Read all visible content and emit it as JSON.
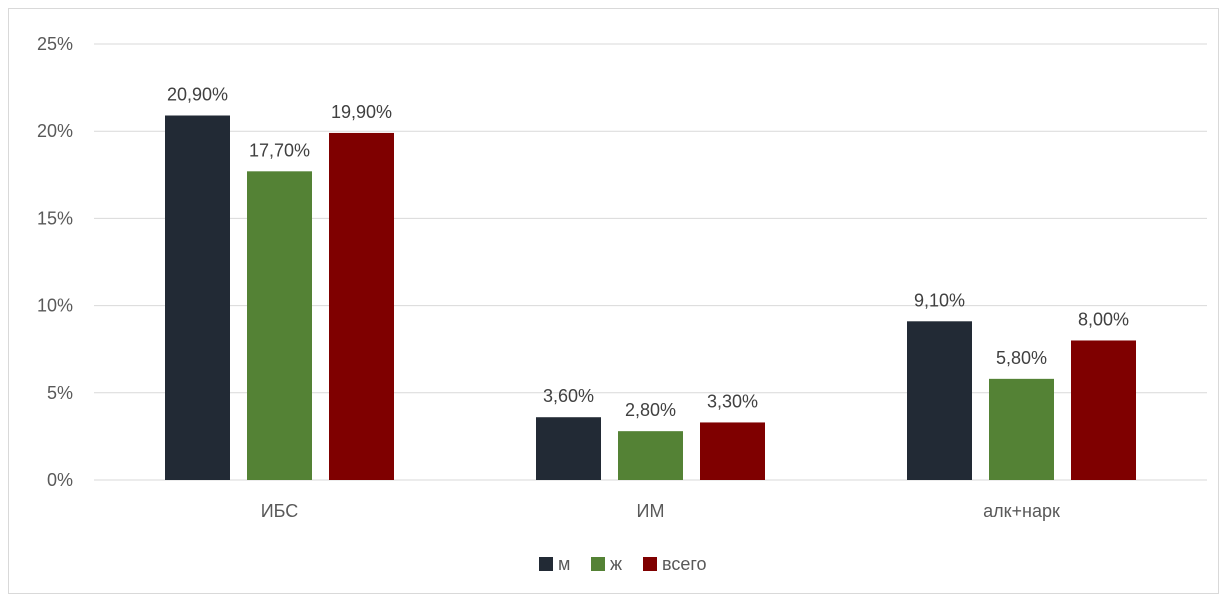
{
  "chart_data": {
    "type": "bar",
    "title": "",
    "xlabel": "",
    "ylabel": "",
    "categories": [
      "ИБС",
      "ИМ",
      "алк+нарк"
    ],
    "series": [
      {
        "name": "м",
        "color": "#222a35",
        "values": [
          20.9,
          3.6,
          9.1
        ],
        "labels": [
          "20,90%",
          "3,60%",
          "9,10%"
        ]
      },
      {
        "name": "ж",
        "color": "#548235",
        "values": [
          17.7,
          2.8,
          5.8
        ],
        "labels": [
          "17,70%",
          "2,80%",
          "5,80%"
        ]
      },
      {
        "name": "всего",
        "color": "#7f0000",
        "values": [
          19.9,
          3.3,
          8.0
        ],
        "labels": [
          "19,90%",
          "3,30%",
          "8,00%"
        ]
      }
    ],
    "ylim": [
      0,
      25
    ],
    "yticks": [
      0,
      5,
      10,
      15,
      20,
      25
    ],
    "ytick_labels": [
      "0%",
      "5%",
      "10%",
      "15%",
      "20%",
      "25%"
    ],
    "grid": true,
    "legend_position": "bottom",
    "colors": {
      "gridline": "#d9d9d9",
      "text": "#595959"
    }
  }
}
